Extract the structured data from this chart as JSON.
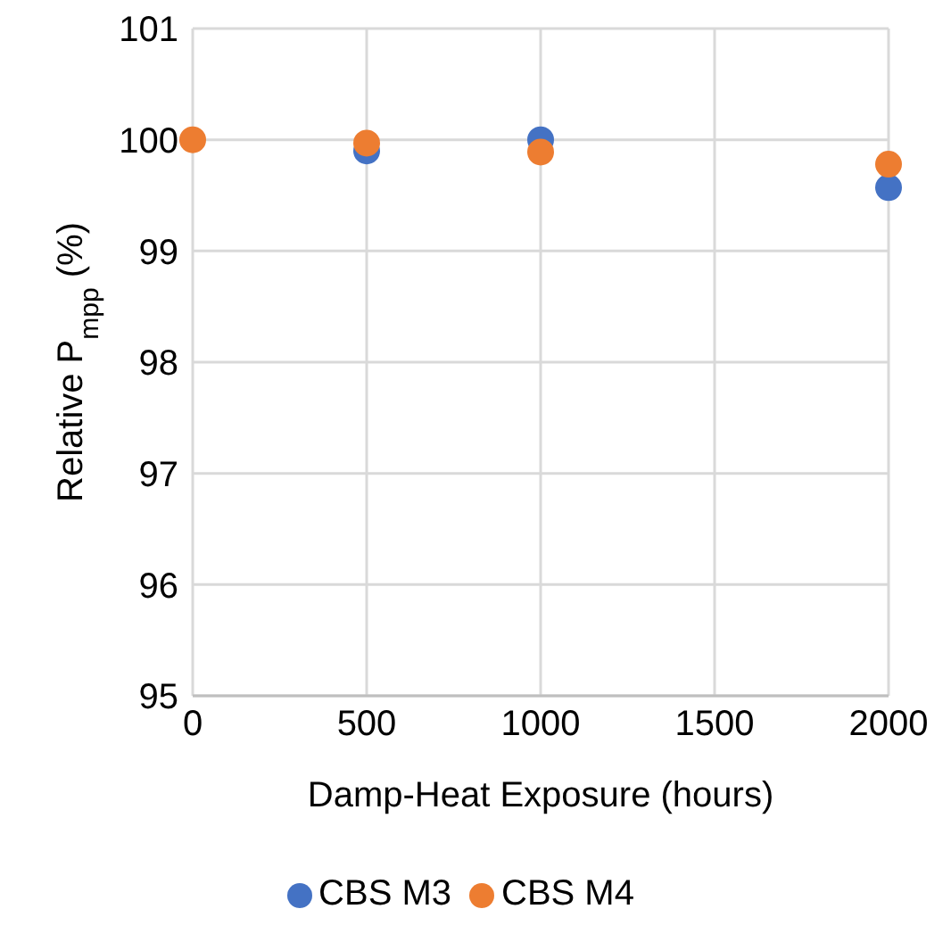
{
  "chart_data": {
    "type": "scatter",
    "xlabel": "Damp-Heat Exposure (hours)",
    "ylabel": "Relative P$_{mpp}$ (%)",
    "x": [
      0,
      500,
      1000,
      2000
    ],
    "series": [
      {
        "name": "CBS M3",
        "color": "#4472c4",
        "values": [
          null,
          99.9,
          100,
          99.57
        ]
      },
      {
        "name": "CBS M4",
        "color": "#ed7d31",
        "values": [
          100,
          99.97,
          99.89,
          99.78
        ]
      }
    ],
    "xlim": [
      0,
      2000
    ],
    "xticks": [
      0,
      500,
      1000,
      1500,
      2000
    ],
    "ylim": [
      95,
      101
    ],
    "yticks": [
      95,
      96,
      97,
      98,
      99,
      100,
      101
    ],
    "grid": true,
    "legend": "bottom",
    "marker": "circle"
  }
}
